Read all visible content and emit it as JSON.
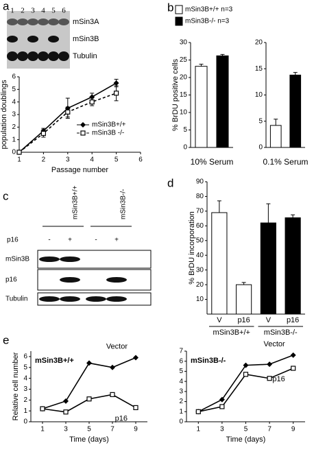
{
  "panel_labels": [
    "a",
    "b",
    "c",
    "d",
    "e"
  ],
  "blot_a": {
    "lanes": [
      "1",
      "2",
      "3",
      "4",
      "5",
      "6"
    ],
    "rows": [
      "mSin3A",
      "mSin3B",
      "Tubulin"
    ]
  },
  "blot_c": {
    "groups": [
      "mSin3B+/+",
      "mSin3B-/-"
    ],
    "treatment_label": "p16",
    "treatment": [
      "-",
      "+",
      "-",
      "+"
    ],
    "rows": [
      "mSin3B",
      "p16",
      "Tubulin"
    ]
  },
  "chart_data": [
    {
      "type": "line",
      "xlabel": "Passage number",
      "ylabel": "population doublings",
      "x": [
        1,
        2,
        3,
        4,
        5
      ],
      "xlim": [
        1,
        6
      ],
      "xticks": [
        1,
        2,
        3,
        4,
        5,
        6
      ],
      "ylim": [
        0,
        6
      ],
      "yticks": [
        0,
        1,
        2,
        3,
        4,
        5,
        6
      ],
      "legend": "right",
      "series": [
        {
          "name": "mSin3B+/+",
          "color": "#000000",
          "marker": "diamond",
          "values": [
            0,
            1.7,
            3.5,
            4.4,
            5.5
          ],
          "errors": [
            0.1,
            0.2,
            0.8,
            0.3,
            0.3
          ]
        },
        {
          "name": "mSin3B -/-",
          "color": "#000000",
          "marker": "square-open",
          "dash": true,
          "values": [
            0,
            1.5,
            3.2,
            4.0,
            4.7
          ],
          "errors": [
            0.1,
            0.3,
            0.4,
            0.3,
            0.6
          ]
        }
      ]
    },
    {
      "type": "bar",
      "xlabel": "10% Serum",
      "ylabel": "% BrDU positive cells",
      "ylim": [
        0,
        30
      ],
      "yticks": [
        0,
        5,
        10,
        15,
        20,
        25,
        30
      ],
      "legend": "top",
      "series": [
        {
          "name": "mSin3B+/+ n=3",
          "color": "#ffffff",
          "values": [
            23.2
          ],
          "errors": [
            0.6
          ]
        },
        {
          "name": "mSin3B-/- n=3",
          "color": "#000000",
          "values": [
            26.2
          ],
          "errors": [
            0.4
          ]
        }
      ]
    },
    {
      "type": "bar",
      "xlabel": "0.1% Serum",
      "ylim": [
        0,
        20
      ],
      "yticks": [
        0,
        5,
        10,
        15,
        20
      ],
      "series": [
        {
          "color": "#ffffff",
          "values": [
            4.2
          ],
          "errors": [
            1.2
          ]
        },
        {
          "color": "#000000",
          "values": [
            13.8
          ],
          "errors": [
            0.5
          ]
        }
      ]
    },
    {
      "type": "bar",
      "ylabel": "% BrDU incorporation",
      "ylim": [
        0,
        90
      ],
      "yticks": [
        10,
        20,
        30,
        40,
        50,
        60,
        70,
        80,
        90
      ],
      "categories": [
        "V",
        "p16",
        "V",
        "p16"
      ],
      "values": [
        69,
        20,
        62,
        65.5
      ],
      "errors": [
        8,
        1.5,
        13,
        2
      ],
      "colors": [
        "#ffffff",
        "#ffffff",
        "#000000",
        "#000000"
      ],
      "groups": [
        {
          "label": "mSin3B+/+",
          "size": 2
        },
        {
          "label": "mSin3B-/-",
          "size": 2
        }
      ]
    },
    {
      "type": "line",
      "annotation": "mSin3B+/+",
      "xlabel": "Time (days)",
      "ylabel": "Relative cell number",
      "x": [
        1,
        3,
        5,
        7,
        9
      ],
      "xlim": [
        0,
        10
      ],
      "xticks": [
        1,
        3,
        5,
        7,
        9
      ],
      "ylim": [
        0,
        6.5
      ],
      "yticks": [
        0,
        1,
        2,
        3,
        4,
        5,
        6
      ],
      "legend": "inline",
      "series": [
        {
          "name": "Vector",
          "color": "#000000",
          "marker": "diamond",
          "values": [
            1.2,
            1.9,
            5.4,
            5.0,
            5.9
          ]
        },
        {
          "name": "p16",
          "color": "#000000",
          "marker": "square-open",
          "values": [
            1.2,
            0.9,
            2.1,
            2.5,
            1.3
          ]
        }
      ]
    },
    {
      "type": "line",
      "annotation": "mSin3B-/-",
      "xlabel": "Time (days)",
      "x": [
        1,
        3,
        5,
        7,
        9
      ],
      "xlim": [
        0,
        10
      ],
      "xticks": [
        1,
        3,
        5,
        7,
        9
      ],
      "ylim": [
        0,
        7
      ],
      "yticks": [
        0,
        1,
        2,
        3,
        4,
        5,
        6,
        7
      ],
      "legend": "inline",
      "series": [
        {
          "name": "Vector",
          "color": "#000000",
          "marker": "diamond",
          "values": [
            1,
            2.2,
            5.6,
            5.7,
            6.6
          ]
        },
        {
          "name": "p16",
          "color": "#000000",
          "marker": "square-open",
          "values": [
            1,
            1.5,
            4.7,
            4.3,
            5.3
          ]
        }
      ]
    }
  ]
}
